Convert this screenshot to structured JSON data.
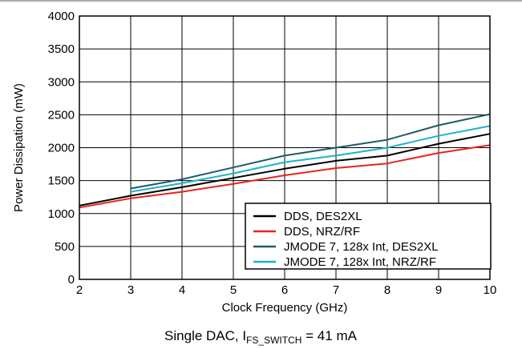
{
  "chart_data": {
    "type": "line",
    "title": "",
    "xlabel": "Clock Frequency (GHz)",
    "ylabel": "Power Dissipation (mW)",
    "xlim": [
      2,
      10
    ],
    "ylim": [
      0,
      4000
    ],
    "xticks": [
      "2",
      "3",
      "4",
      "5",
      "6",
      "7",
      "8",
      "9",
      "10"
    ],
    "yticks": [
      "0",
      "500",
      "1000",
      "1500",
      "2000",
      "2500",
      "3000",
      "3500",
      "4000"
    ],
    "grid": true,
    "legend_position": "bottom-right",
    "caption": {
      "prefix": "Single DAC, I",
      "subscript": "FS_SWITCH",
      "suffix": " = 41 mA"
    },
    "series": [
      {
        "name": "DDS, DES2XL",
        "color": "#000000",
        "x": [
          2,
          3,
          4,
          5,
          6,
          7,
          8,
          9,
          10
        ],
        "y": [
          1120,
          1270,
          1400,
          1540,
          1680,
          1800,
          1880,
          2060,
          2210
        ]
      },
      {
        "name": "DDS, NRZ/RF",
        "color": "#e8231e",
        "x": [
          2,
          3,
          4,
          5,
          6,
          7,
          8,
          9,
          10
        ],
        "y": [
          1090,
          1230,
          1330,
          1450,
          1580,
          1690,
          1760,
          1920,
          2040
        ]
      },
      {
        "name": "JMODE 7, 128x Int, DES2XL",
        "color": "#1f5a68",
        "x": [
          3,
          4,
          5,
          6,
          7,
          8,
          9,
          10
        ],
        "y": [
          1380,
          1520,
          1700,
          1880,
          2000,
          2120,
          2340,
          2510
        ]
      },
      {
        "name": "JMODE 7, 128x Int, NRZ/RF",
        "color": "#1ab3cc",
        "x": [
          3,
          4,
          5,
          6,
          7,
          8,
          9,
          10
        ],
        "y": [
          1330,
          1460,
          1610,
          1780,
          1880,
          2000,
          2180,
          2330
        ]
      }
    ]
  }
}
